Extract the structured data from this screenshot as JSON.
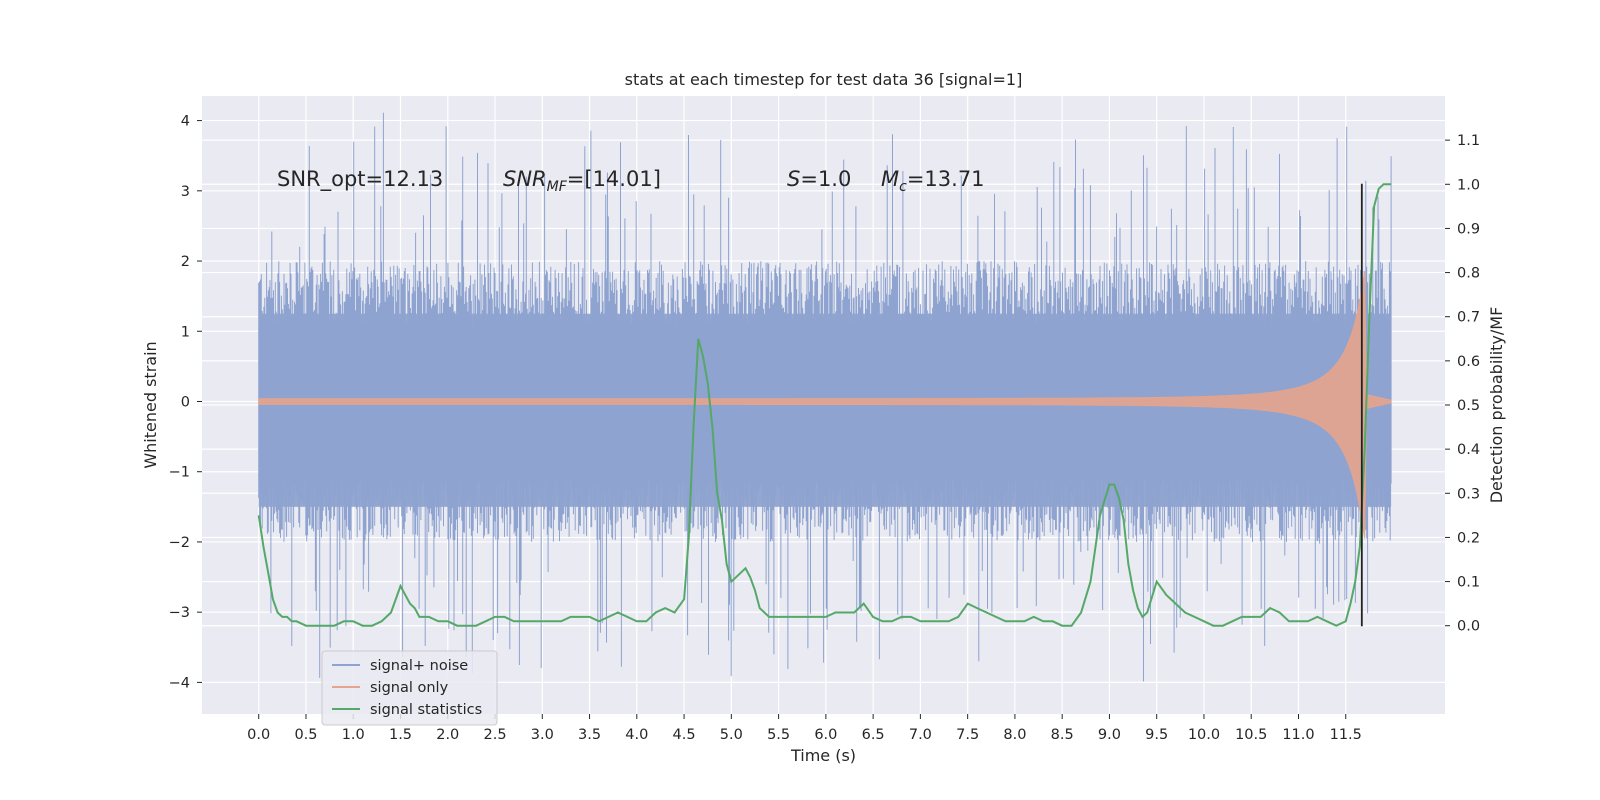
{
  "chart_data": {
    "type": "line",
    "title": "stats at each timestep for test data 36 [signal=1]",
    "xlabel": "Time (s)",
    "ylabel": "Whitened strain",
    "ylabel_right": "Detection probability/MF",
    "xlim": [
      -0.6,
      12.55
    ],
    "ylim": [
      -4.45,
      4.35
    ],
    "ylim_right": [
      -0.2,
      1.2
    ],
    "x_ticks": [
      0.0,
      0.5,
      1.0,
      1.5,
      2.0,
      2.5,
      3.0,
      3.5,
      4.0,
      4.5,
      5.0,
      5.5,
      6.0,
      6.5,
      7.0,
      7.5,
      8.0,
      8.5,
      9.0,
      9.5,
      10.0,
      10.5,
      11.0,
      11.5
    ],
    "x_tick_labels": [
      "0.0",
      "0.5",
      "1.0",
      "1.5",
      "2.0",
      "2.5",
      "3.0",
      "3.5",
      "4.0",
      "4.5",
      "5.0",
      "5.5",
      "6.0",
      "6.5",
      "7.0",
      "7.5",
      "8.0",
      "8.5",
      "9.0",
      "9.5",
      "10.0",
      "10.5",
      "11.0",
      "11.5"
    ],
    "y_ticks": [
      -4,
      -3,
      -2,
      -1,
      0,
      1,
      2,
      3,
      4
    ],
    "y_tick_labels": [
      "−4",
      "−3",
      "−2",
      "−1",
      "0",
      "1",
      "2",
      "3",
      "4"
    ],
    "y_right_ticks": [
      0.0,
      0.1,
      0.2,
      0.3,
      0.4,
      0.5,
      0.6,
      0.7,
      0.8,
      0.9,
      1.0,
      1.1
    ],
    "y_right_tick_labels": [
      "0.0",
      "0.1",
      "0.2",
      "0.3",
      "0.4",
      "0.5",
      "0.6",
      "0.7",
      "0.8",
      "0.9",
      "1.0",
      "1.1"
    ],
    "grid": true,
    "legend_position": "lower-left",
    "annotations": [
      {
        "parts": [
          {
            "text": "SNR_opt=12.13",
            "italic": false
          }
        ]
      },
      {
        "parts": [
          {
            "text": "SNR",
            "italic": true
          },
          {
            "text": "MF",
            "italic": true,
            "sub": true
          },
          {
            "text": "=[14.01]",
            "italic": false
          }
        ]
      },
      {
        "parts": [
          {
            "text": "S",
            "italic": true
          },
          {
            "text": "=1.0",
            "italic": false
          }
        ]
      },
      {
        "parts": [
          {
            "text": "M",
            "italic": true
          },
          {
            "text": "c",
            "italic": true,
            "sub": true
          },
          {
            "text": "=13.71",
            "italic": false
          }
        ]
      }
    ],
    "series": [
      {
        "name": "signal+ noise",
        "color": "#8ea3cf",
        "axis": "left",
        "style": "noise",
        "x_start": 0.0,
        "x_end": 11.98,
        "envelope_typical": 2.0,
        "envelope_max": 4.0,
        "envelope_min": -4.05
      },
      {
        "name": "signal only",
        "color": "#e5a48c",
        "axis": "left",
        "style": "chirp",
        "x_start": 0.0,
        "x_end": 11.98,
        "merger_time": 11.7,
        "peak_amplitude": 1.9
      },
      {
        "name": "signal statistics",
        "color": "#55a868",
        "axis": "right",
        "style": "line",
        "x": [
          0.0,
          0.05,
          0.1,
          0.15,
          0.2,
          0.25,
          0.3,
          0.35,
          0.4,
          0.5,
          0.6,
          0.7,
          0.8,
          0.9,
          1.0,
          1.1,
          1.2,
          1.3,
          1.4,
          1.5,
          1.55,
          1.6,
          1.65,
          1.7,
          1.8,
          1.9,
          2.0,
          2.1,
          2.2,
          2.3,
          2.4,
          2.5,
          2.6,
          2.7,
          2.8,
          2.9,
          3.0,
          3.1,
          3.2,
          3.3,
          3.4,
          3.5,
          3.6,
          3.7,
          3.8,
          3.9,
          4.0,
          4.1,
          4.2,
          4.3,
          4.4,
          4.5,
          4.55,
          4.6,
          4.65,
          4.7,
          4.75,
          4.8,
          4.85,
          4.9,
          4.95,
          5.0,
          5.05,
          5.1,
          5.15,
          5.2,
          5.25,
          5.3,
          5.4,
          5.5,
          5.6,
          5.7,
          5.8,
          5.9,
          6.0,
          6.1,
          6.2,
          6.3,
          6.4,
          6.5,
          6.6,
          6.7,
          6.8,
          6.9,
          7.0,
          7.1,
          7.2,
          7.3,
          7.4,
          7.5,
          7.6,
          7.7,
          7.8,
          7.9,
          8.0,
          8.1,
          8.2,
          8.3,
          8.4,
          8.5,
          8.6,
          8.7,
          8.8,
          8.9,
          9.0,
          9.05,
          9.1,
          9.15,
          9.2,
          9.25,
          9.3,
          9.35,
          9.4,
          9.5,
          9.6,
          9.7,
          9.8,
          9.9,
          10.0,
          10.1,
          10.2,
          10.3,
          10.4,
          10.5,
          10.6,
          10.7,
          10.8,
          10.9,
          11.0,
          11.1,
          11.2,
          11.3,
          11.4,
          11.5,
          11.55,
          11.6,
          11.65,
          11.7,
          11.75,
          11.8,
          11.85,
          11.9,
          11.98
        ],
        "values": [
          0.25,
          0.18,
          0.12,
          0.06,
          0.03,
          0.02,
          0.02,
          0.01,
          0.01,
          0.0,
          0.0,
          0.0,
          0.0,
          0.01,
          0.01,
          0.0,
          0.0,
          0.01,
          0.03,
          0.09,
          0.07,
          0.05,
          0.04,
          0.02,
          0.02,
          0.01,
          0.01,
          0.0,
          0.0,
          0.0,
          0.01,
          0.02,
          0.02,
          0.01,
          0.01,
          0.01,
          0.01,
          0.01,
          0.01,
          0.02,
          0.02,
          0.02,
          0.01,
          0.02,
          0.03,
          0.02,
          0.01,
          0.01,
          0.03,
          0.04,
          0.03,
          0.06,
          0.2,
          0.45,
          0.65,
          0.61,
          0.55,
          0.45,
          0.3,
          0.24,
          0.14,
          0.1,
          0.11,
          0.12,
          0.13,
          0.11,
          0.08,
          0.04,
          0.02,
          0.02,
          0.02,
          0.02,
          0.02,
          0.02,
          0.02,
          0.03,
          0.03,
          0.03,
          0.05,
          0.02,
          0.01,
          0.01,
          0.02,
          0.02,
          0.01,
          0.01,
          0.01,
          0.01,
          0.02,
          0.05,
          0.04,
          0.03,
          0.02,
          0.01,
          0.01,
          0.01,
          0.02,
          0.01,
          0.01,
          0.0,
          0.0,
          0.03,
          0.1,
          0.25,
          0.32,
          0.32,
          0.29,
          0.24,
          0.14,
          0.08,
          0.04,
          0.02,
          0.03,
          0.1,
          0.07,
          0.05,
          0.03,
          0.02,
          0.01,
          0.0,
          0.0,
          0.01,
          0.02,
          0.02,
          0.02,
          0.04,
          0.03,
          0.01,
          0.01,
          0.01,
          0.02,
          0.01,
          0.0,
          0.01,
          0.05,
          0.1,
          0.18,
          0.4,
          0.7,
          0.95,
          0.99,
          1.0,
          1.0
        ]
      }
    ],
    "event_marker": {
      "x": 11.67,
      "y_low": -3.2,
      "y_high": 3.1,
      "color": "#222222"
    }
  }
}
